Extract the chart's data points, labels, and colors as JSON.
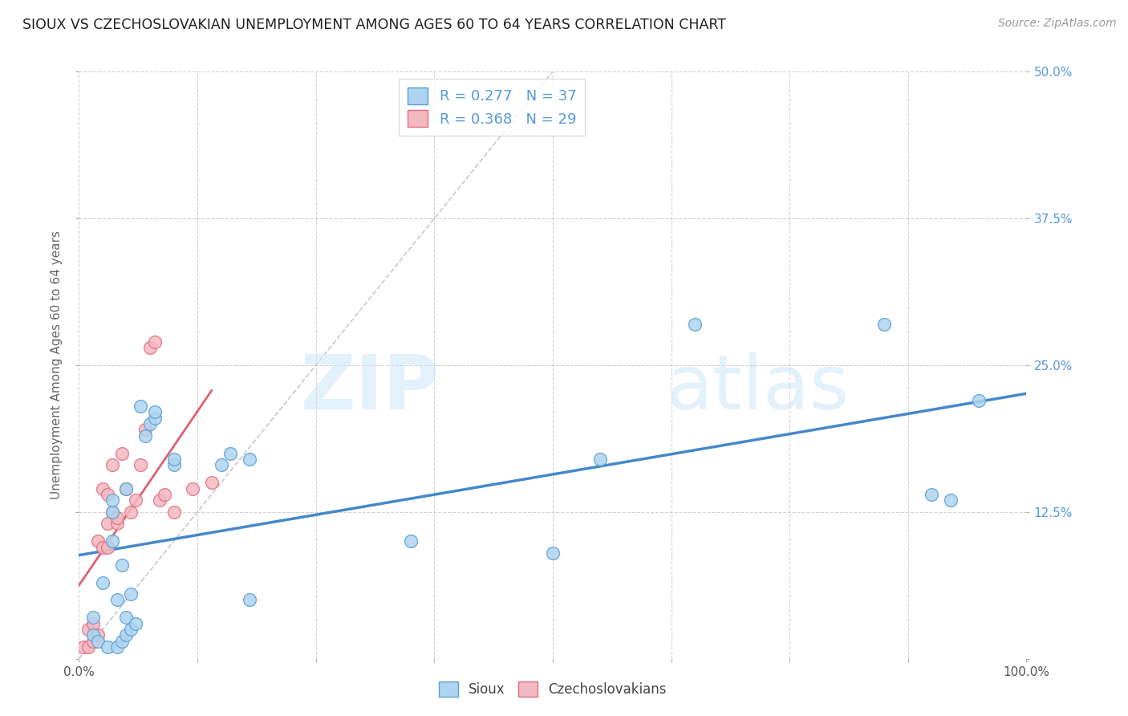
{
  "title": "SIOUX VS CZECHOSLOVAKIAN UNEMPLOYMENT AMONG AGES 60 TO 64 YEARS CORRELATION CHART",
  "source": "Source: ZipAtlas.com",
  "ylabel": "Unemployment Among Ages 60 to 64 years",
  "xlim": [
    0,
    100
  ],
  "ylim": [
    0,
    50
  ],
  "xticks": [
    0,
    12.5,
    25,
    37.5,
    50,
    62.5,
    75,
    87.5,
    100
  ],
  "yticks": [
    0,
    12.5,
    25,
    37.5,
    50
  ],
  "sioux_R": "0.277",
  "sioux_N": "37",
  "czech_R": "0.368",
  "czech_N": "29",
  "sioux_color": "#aed4f0",
  "czech_color": "#f4b8c0",
  "sioux_edge_color": "#5a9fd4",
  "czech_edge_color": "#e07080",
  "sioux_line_color": "#4488cc",
  "czech_line_color": "#e06070",
  "diagonal_color": "#c8c8c8",
  "right_label_color": "#5599dd",
  "sioux_x": [
    1.5,
    1.5,
    2.0,
    2.5,
    3.0,
    3.5,
    3.5,
    3.5,
    4.0,
    4.0,
    4.5,
    4.5,
    5.0,
    5.0,
    5.0,
    5.5,
    5.5,
    6.0,
    6.5,
    7.0,
    7.5,
    8.0,
    8.0,
    10.0,
    10.0,
    15.0,
    16.0,
    18.0,
    18.0,
    35.0,
    50.0,
    55.0,
    65.0,
    85.0,
    90.0,
    92.0,
    95.0
  ],
  "sioux_y": [
    2.0,
    3.5,
    1.5,
    6.5,
    1.0,
    10.0,
    12.5,
    13.5,
    1.0,
    5.0,
    1.5,
    8.0,
    2.0,
    3.5,
    14.5,
    2.5,
    5.5,
    3.0,
    21.5,
    19.0,
    20.0,
    20.5,
    21.0,
    16.5,
    17.0,
    16.5,
    17.5,
    17.0,
    5.0,
    10.0,
    9.0,
    17.0,
    28.5,
    28.5,
    14.0,
    13.5,
    22.0
  ],
  "czech_x": [
    0.5,
    1.0,
    1.0,
    1.5,
    1.5,
    2.0,
    2.0,
    2.5,
    2.5,
    3.0,
    3.0,
    3.0,
    3.5,
    3.5,
    4.0,
    4.0,
    4.5,
    5.0,
    5.5,
    6.0,
    6.5,
    7.0,
    7.5,
    8.0,
    8.5,
    9.0,
    10.0,
    12.0,
    14.0
  ],
  "czech_y": [
    1.0,
    1.0,
    2.5,
    1.5,
    3.0,
    2.0,
    10.0,
    9.5,
    14.5,
    9.5,
    11.5,
    14.0,
    12.5,
    16.5,
    11.5,
    12.0,
    17.5,
    14.5,
    12.5,
    13.5,
    16.5,
    19.5,
    26.5,
    27.0,
    13.5,
    14.0,
    12.5,
    14.5,
    15.0
  ]
}
